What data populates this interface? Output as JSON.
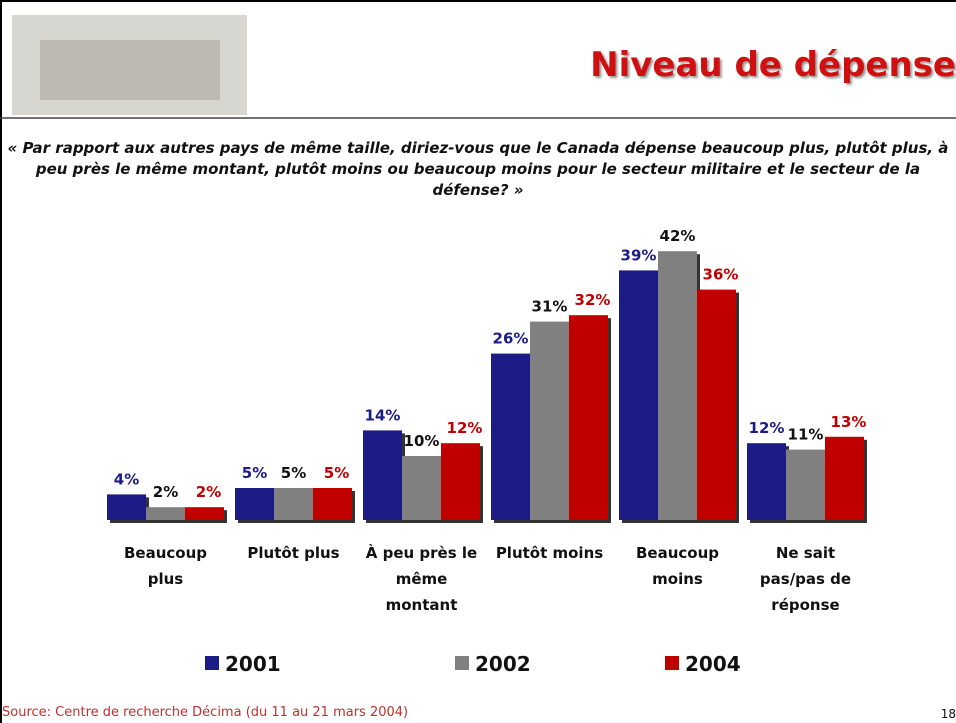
{
  "header": {
    "title": "Niveau de dépense"
  },
  "question": "« Par rapport aux autres pays de même taille, diriez-vous que le Canada dépense beaucoup plus, plutôt plus, à peu près le même montant, plutôt moins ou beaucoup moins pour le secteur militaire et le secteur de la défense? »",
  "chart_data": {
    "type": "bar",
    "categories": [
      "Beaucoup plus",
      "Plutôt plus",
      "À peu près le même montant",
      "Plutôt moins",
      "Beaucoup moins",
      "Ne sait pas/pas de réponse"
    ],
    "series": [
      {
        "name": "2001",
        "color": "#1c1c86",
        "values": [
          4,
          5,
          14,
          26,
          39,
          12
        ],
        "value_labels": [
          "4%",
          "5%",
          "14%",
          "26%",
          "39%",
          "12%"
        ]
      },
      {
        "name": "2002",
        "color": "#808080",
        "values": [
          2,
          5,
          10,
          31,
          42,
          11
        ],
        "value_labels": [
          "2%",
          "5%",
          "10%",
          "31%",
          "42%",
          "11%"
        ]
      },
      {
        "name": "2004",
        "color": "#c00000",
        "values": [
          2,
          5,
          12,
          32,
          36,
          13
        ],
        "value_labels": [
          "2%",
          "5%",
          "12%",
          "32%",
          "36%",
          "13%"
        ]
      }
    ]
  },
  "footer": {
    "source": "Source: Centre de recherche Décima (du 11 au 21 mars 2004)",
    "page": "18"
  }
}
